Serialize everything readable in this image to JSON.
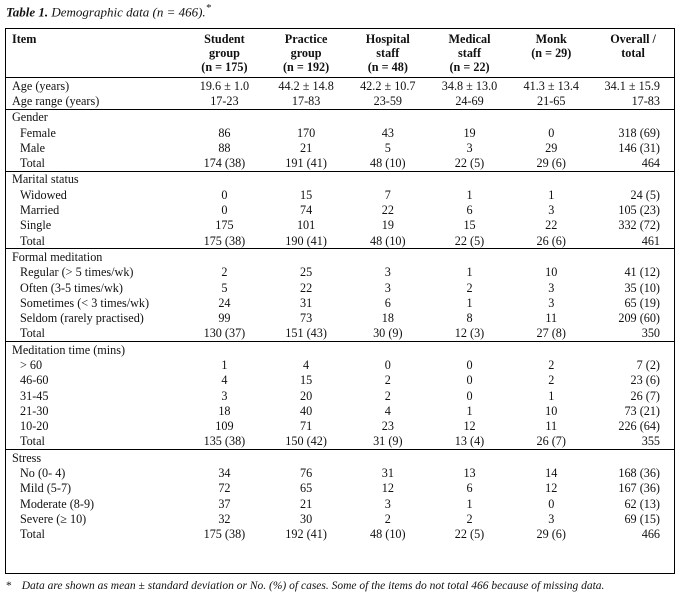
{
  "caption": {
    "label": "Table 1.",
    "text": "Demographic data (n = 466).",
    "mark": "*"
  },
  "columns": [
    {
      "l1": "Item",
      "l2": "",
      "l3": ""
    },
    {
      "l1": "Student",
      "l2": "group",
      "l3": "(n = 175)"
    },
    {
      "l1": "Practice",
      "l2": "group",
      "l3": "(n = 192)"
    },
    {
      "l1": "Hospital",
      "l2": "staff",
      "l3": "(n = 48)"
    },
    {
      "l1": "Medical",
      "l2": "staff",
      "l3": "(n = 22)"
    },
    {
      "l1": "Monk",
      "l2": "(n = 29)",
      "l3": ""
    },
    {
      "l1": "Overall /",
      "l2": "total",
      "l3": ""
    }
  ],
  "age_rows": [
    {
      "label": "Age (years)",
      "v": [
        "19.6 ± 1.0",
        "44.2 ± 14.8",
        "42.2 ± 10.7",
        "34.8 ± 13.0",
        "41.3 ± 13.4",
        "34.1 ± 15.9"
      ]
    },
    {
      "label": "Age range (years)",
      "v": [
        "17-23",
        "17-83",
        "23-59",
        "24-69",
        "21-65",
        "17-83"
      ]
    }
  ],
  "sections": [
    {
      "title": "Gender",
      "rows": [
        {
          "label": "Female",
          "v": [
            "86",
            "170",
            "43",
            "19",
            "0",
            "318 (69)"
          ]
        },
        {
          "label": "Male",
          "v": [
            "88",
            "21",
            "5",
            "3",
            "29",
            "146 (31)"
          ]
        },
        {
          "label": "Total",
          "v": [
            "174 (38)",
            "191 (41)",
            "48 (10)",
            "22 (5)",
            "29 (6)",
            "464"
          ]
        }
      ]
    },
    {
      "title": "Marital status",
      "rows": [
        {
          "label": "Widowed",
          "v": [
            "0",
            "15",
            "7",
            "1",
            "1",
            "24 (5)"
          ]
        },
        {
          "label": "Married",
          "v": [
            "0",
            "74",
            "22",
            "6",
            "3",
            "105 (23)"
          ]
        },
        {
          "label": "Single",
          "v": [
            "175",
            "101",
            "19",
            "15",
            "22",
            "332 (72)"
          ]
        },
        {
          "label": "Total",
          "v": [
            "175 (38)",
            "190 (41)",
            "48 (10)",
            "22 (5)",
            "26 (6)",
            "461"
          ]
        }
      ]
    },
    {
      "title": "Formal meditation",
      "rows": [
        {
          "label": "Regular (> 5 times/wk)",
          "v": [
            "2",
            "25",
            "3",
            "1",
            "10",
            "41 (12)"
          ]
        },
        {
          "label": "Often (3-5 times/wk)",
          "v": [
            "5",
            "22",
            "3",
            "2",
            "3",
            "35 (10)"
          ]
        },
        {
          "label": "Sometimes (< 3 times/wk)",
          "v": [
            "24",
            "31",
            "6",
            "1",
            "3",
            "65 (19)"
          ]
        },
        {
          "label": "Seldom (rarely practised)",
          "v": [
            "99",
            "73",
            "18",
            "8",
            "11",
            "209 (60)"
          ]
        },
        {
          "label": "Total",
          "v": [
            "130 (37)",
            "151 (43)",
            "30 (9)",
            "12 (3)",
            "27 (8)",
            "350"
          ]
        }
      ]
    },
    {
      "title": "Meditation time (mins)",
      "rows": [
        {
          "label": "> 60",
          "v": [
            "1",
            "4",
            "0",
            "0",
            "2",
            "7 (2)"
          ]
        },
        {
          "label": "46-60",
          "v": [
            "4",
            "15",
            "2",
            "0",
            "2",
            "23 (6)"
          ]
        },
        {
          "label": "31-45",
          "v": [
            "3",
            "20",
            "2",
            "0",
            "1",
            "26 (7)"
          ]
        },
        {
          "label": "21-30",
          "v": [
            "18",
            "40",
            "4",
            "1",
            "10",
            "73 (21)"
          ]
        },
        {
          "label": "10-20",
          "v": [
            "109",
            "71",
            "23",
            "12",
            "11",
            "226 (64)"
          ]
        },
        {
          "label": "Total",
          "v": [
            "135 (38)",
            "150 (42)",
            "31 (9)",
            "13 (4)",
            "26 (7)",
            "355"
          ]
        }
      ]
    },
    {
      "title": "Stress",
      "rows": [
        {
          "label": "No (0- 4)",
          "v": [
            "34",
            "76",
            "31",
            "13",
            "14",
            "168 (36)"
          ]
        },
        {
          "label": "Mild (5-7)",
          "v": [
            "72",
            "65",
            "12",
            "6",
            "12",
            "167 (36)"
          ]
        },
        {
          "label": "Moderate (8-9)",
          "v": [
            "37",
            "21",
            "3",
            "1",
            "0",
            "62 (13)"
          ]
        },
        {
          "label": "Severe (≥ 10)",
          "v": [
            "32",
            "30",
            "2",
            "2",
            "3",
            "69 (15)"
          ]
        },
        {
          "label": "Total",
          "v": [
            "175 (38)",
            "192 (41)",
            "48 (10)",
            "22 (5)",
            "29 (6)",
            "466"
          ]
        }
      ]
    }
  ],
  "footnote": {
    "mark": "*",
    "text": "Data are shown as mean ± standard deviation or No. (%) of cases. Some of the items do not total 466 because of missing data."
  }
}
